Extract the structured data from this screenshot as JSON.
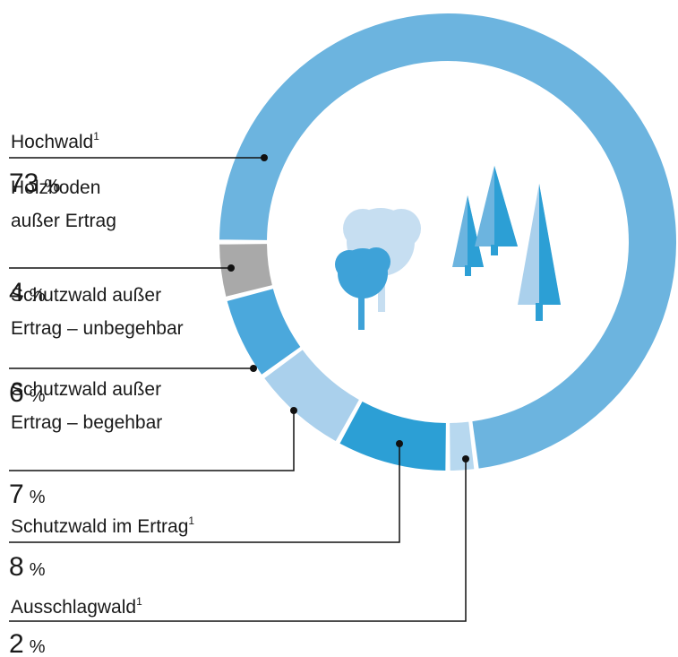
{
  "chart_data": {
    "type": "donut",
    "unit": "%",
    "series": [
      {
        "name": "Hochwald",
        "footnote": "1",
        "value": 73,
        "color": "#6cb4df"
      },
      {
        "name": "Ausschlagwald",
        "footnote": "1",
        "value": 2,
        "color": "#b7d8ef"
      },
      {
        "name": "Schutzwald im Ertrag",
        "footnote": "1",
        "value": 8,
        "color": "#2c9fd5"
      },
      {
        "name": "Schutzwald außer\nErtrag – begehbar",
        "value": 7,
        "color": "#aad0ec"
      },
      {
        "name": "Schutzwald außer\nErtrag – unbegehbar",
        "value": 6,
        "color": "#4ba8dc"
      },
      {
        "name": "Holzboden\naußer Ertrag",
        "value": 4,
        "color": "#a9a9a9"
      }
    ]
  }
}
